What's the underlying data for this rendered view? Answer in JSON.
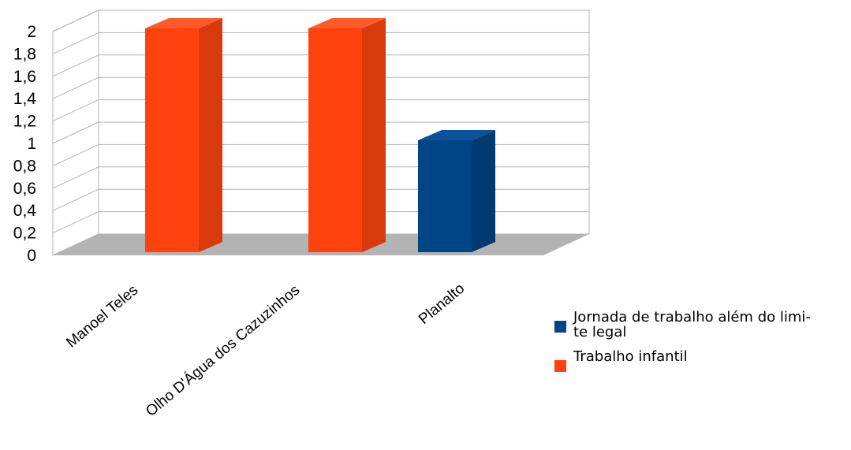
{
  "chart_data": {
    "type": "bar",
    "categories": [
      "Manoel Teles",
      "Olho D'Água dos Cazuzinhos",
      "Planalto"
    ],
    "series": [
      {
        "name": "Jornada de trabalho além do limi-\nte legal",
        "values": [
          0,
          0,
          1
        ],
        "color": "#004586"
      },
      {
        "name": "Trabalho infantil",
        "values": [
          2,
          2,
          0
        ],
        "color": "#ff420e"
      }
    ],
    "y_ticks": [
      "0",
      "0,2",
      "0,4",
      "0,6",
      "0,8",
      "1",
      "1,2",
      "1,4",
      "1,6",
      "1,8",
      "2"
    ],
    "ylim": [
      0,
      2
    ],
    "grid": true,
    "style": "3d",
    "legend_position": "right"
  },
  "legend": {
    "item0": "Jornada de trabalho além do limi-\nte legal",
    "item1": "Trabalho infantil"
  }
}
